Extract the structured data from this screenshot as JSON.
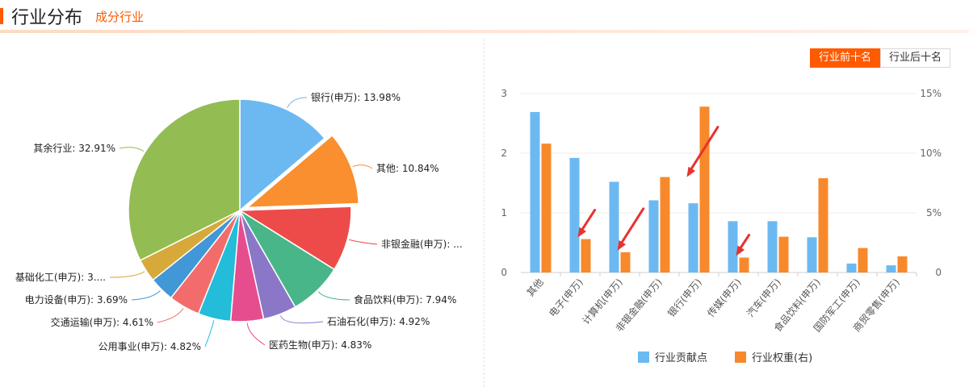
{
  "header": {
    "title": "行业分布",
    "subtitle": "成分行业"
  },
  "tabs": [
    {
      "label": "行业前十名",
      "active": true
    },
    {
      "label": "行业后十名",
      "active": false
    }
  ],
  "colors": {
    "accent": "#ff5a00",
    "contribution": "#6cb9f2",
    "weight": "#f7892b",
    "arrow": "#e8322e"
  },
  "chart_data": [
    {
      "type": "pie",
      "slices": [
        {
          "label": "银行(申万): 13.98%",
          "value": 13.98,
          "color": "#6cb9f2"
        },
        {
          "label": "其他: 10.84%",
          "value": 10.84,
          "color": "#f98f2e",
          "exploded": true
        },
        {
          "label": "非银金融(申万): ...",
          "value": 9.6,
          "color": "#ec4b4a"
        },
        {
          "label": "食品饮料(申万): 7.94%",
          "value": 7.94,
          "color": "#49b68a"
        },
        {
          "label": "石油石化(申万): 4.92%",
          "value": 4.92,
          "color": "#8a77c7"
        },
        {
          "label": "医药生物(申万): 4.83%",
          "value": 4.83,
          "color": "#e64d8e"
        },
        {
          "label": "公用事业(申万): 4.82%",
          "value": 4.82,
          "color": "#23bcd9"
        },
        {
          "label": "交通运输(申万): 4.61%",
          "value": 4.61,
          "color": "#f36c6c"
        },
        {
          "label": "电力设备(申万): 3.69%",
          "value": 3.69,
          "color": "#4297d6"
        },
        {
          "label": "基础化工(申万): 3....",
          "value": 3.4,
          "color": "#d6a93a"
        },
        {
          "label": "其余行业: 32.91%",
          "value": 32.91,
          "color": "#93bc52"
        }
      ]
    },
    {
      "type": "bar",
      "categories": [
        "其他",
        "电子(申万)",
        "计算机(申万)",
        "非银金融(申万)",
        "银行(申万)",
        "传媒(申万)",
        "汽车(申万)",
        "食品饮料(申万)",
        "国防军工(申万)",
        "商贸零售(申万)"
      ],
      "series": [
        {
          "name": "行业贡献点",
          "axis": "left",
          "values": [
            2.69,
            1.92,
            1.52,
            1.21,
            1.16,
            0.86,
            0.86,
            0.59,
            0.15,
            0.12
          ]
        },
        {
          "name": "行业权重(右)",
          "axis": "right",
          "values": [
            10.8,
            2.8,
            1.7,
            8.0,
            13.9,
            1.25,
            3.0,
            7.9,
            2.05,
            1.35
          ]
        }
      ],
      "y_left": {
        "range": [
          0,
          3
        ],
        "ticks": [
          "0",
          "1",
          "2",
          "3"
        ]
      },
      "y_right": {
        "range": [
          0,
          15
        ],
        "ticks": [
          "0",
          "5%",
          "10%",
          "15%"
        ]
      },
      "legend_position": "bottom",
      "annotations": [
        "red arrow pointing to 电子(申万) weight bar",
        "red arrow pointing to 计算机(申万) weight bar",
        "red arrow pointing to 银行(申万) weight bar",
        "red arrow pointing to 传媒(申万) weight bar"
      ]
    }
  ]
}
